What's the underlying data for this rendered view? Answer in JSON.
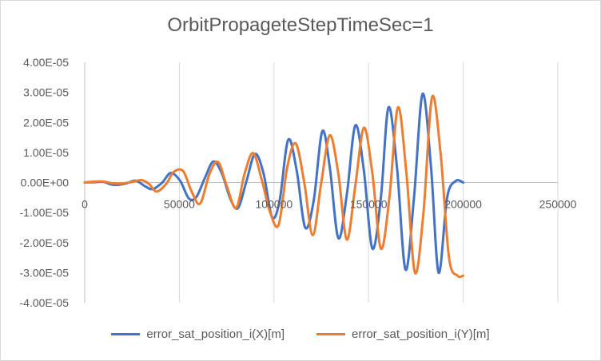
{
  "chart_data": {
    "type": "line",
    "title": "OrbitPropageteStepTimeSec=1",
    "xlabel": "",
    "ylabel": "",
    "xlim": [
      0,
      250000
    ],
    "ylim": [
      -4e-05,
      4e-05
    ],
    "xticks": [
      0,
      50000,
      100000,
      150000,
      200000,
      250000
    ],
    "xtick_labels": [
      "0",
      "50000",
      "100000",
      "150000",
      "200000",
      "250000"
    ],
    "yticks": [
      -4e-05,
      -3e-05,
      -2e-05,
      -1e-05,
      0,
      1e-05,
      2e-05,
      3e-05,
      4e-05
    ],
    "ytick_labels": [
      "-4.00E-05",
      "-3.00E-05",
      "-2.00E-05",
      "-1.00E-05",
      "0.00E+00",
      "1.00E-05",
      "2.00E-05",
      "3.00E-05",
      "4.00E-05"
    ],
    "grid": "vertical",
    "legend_position": "bottom",
    "series": [
      {
        "name": "error_sat_position_i(X)[m]",
        "color": "#4472C4",
        "x": [
          0,
          5000,
          10000,
          13500,
          17000,
          22000,
          27000,
          32000,
          36000,
          41000,
          45500,
          50500,
          55000,
          59000,
          63500,
          68000,
          72500,
          77000,
          81000,
          85500,
          90000,
          94500,
          99000,
          103000,
          107500,
          112000,
          116500,
          121000,
          125500,
          129500,
          134000,
          138500,
          143000,
          147500,
          152000,
          156500,
          160500,
          165000,
          169500,
          174000,
          178500,
          183000,
          187000,
          191500,
          196000,
          200000
        ],
        "y": [
          0,
          1e-07,
          2e-07,
          -6e-07,
          -8e-07,
          -3e-07,
          6e-07,
          -1.3e-06,
          -2.2e-06,
          0,
          3.2e-06,
          5e-07,
          -5.3e-06,
          -4.8e-06,
          1.5e-06,
          7e-06,
          3e-06,
          -5.5e-06,
          -8.5e-06,
          5e-07,
          9.5e-06,
          3e-06,
          -1.15e-05,
          -6e-06,
          1.42e-05,
          4e-06,
          -1.5e-05,
          -6e-06,
          1.7e-05,
          5e-06,
          -1.85e-05,
          -4e-06,
          1.9e-05,
          4e-06,
          -2.2e-05,
          -5e-06,
          2.5e-05,
          5e-06,
          -2.9e-05,
          -5e-06,
          2.95e-05,
          5e-06,
          -3e-05,
          -5e-06,
          5e-07,
          0
        ]
      },
      {
        "name": "error_sat_position_i(Y)[m]",
        "color": "#ED7D31",
        "x": [
          0,
          5000,
          10000,
          15000,
          20000,
          25000,
          30000,
          34000,
          38000,
          43000,
          47000,
          52000,
          56500,
          61000,
          66000,
          70500,
          75000,
          80000,
          84500,
          89000,
          93500,
          98000,
          102500,
          107000,
          111500,
          116000,
          120500,
          125000,
          129500,
          134000,
          138500,
          143000,
          147500,
          152000,
          156500,
          161000,
          165500,
          170000,
          174500,
          179000,
          183500,
          188000,
          192500,
          197000,
          200000
        ],
        "y": [
          0,
          3e-07,
          3e-07,
          -3e-07,
          -3e-07,
          2e-07,
          8e-07,
          -5e-07,
          -3e-06,
          -5e-07,
          3.5e-06,
          3.8e-06,
          -3e-06,
          -7e-06,
          3e-06,
          6.8e-06,
          -1e-06,
          -8.5e-06,
          3e-06,
          9.8e-06,
          1e-06,
          -1e-05,
          -1.4e-05,
          5e-06,
          1.3e-05,
          0,
          -1.75e-05,
          0,
          1.57e-05,
          3e-06,
          -1.9e-05,
          -1e-06,
          1.82e-05,
          3e-06,
          -2.2e-05,
          -5e-06,
          2.5e-05,
          3e-06,
          -3e-05,
          -1e-05,
          2.83e-05,
          1e-05,
          -2.5e-05,
          -3.1e-05,
          -3.1e-05
        ]
      }
    ]
  }
}
